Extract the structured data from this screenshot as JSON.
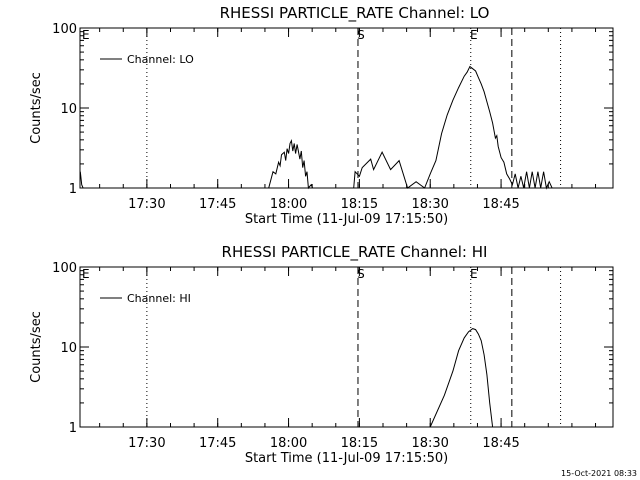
{
  "footer_timestamp": "15-Oct-2021 08:33",
  "chart_data": [
    {
      "type": "line",
      "title": "RHESSI PARTICLE_RATE Channel: LO",
      "xlabel": "Start Time (11-Jul-09 17:15:50)",
      "ylabel": "Counts/sec",
      "xlim": [
        17.264,
        19.145
      ],
      "ylim": [
        1,
        100
      ],
      "yscale": "log",
      "grid": false,
      "legend_position": "top-left",
      "x_ticks": [
        {
          "x": 17.5,
          "label": "17:30"
        },
        {
          "x": 17.75,
          "label": "17:45"
        },
        {
          "x": 18.0,
          "label": "18:00"
        },
        {
          "x": 18.25,
          "label": "18:15"
        },
        {
          "x": 18.5,
          "label": "18:30"
        },
        {
          "x": 18.75,
          "label": "18:45"
        }
      ],
      "y_ticks": [
        {
          "y": 1,
          "label": "1"
        },
        {
          "y": 10,
          "label": "10"
        },
        {
          "y": 100,
          "label": "100"
        }
      ],
      "series": [
        {
          "name": "Channel: LO",
          "x": [
            17.265,
            17.27,
            17.275,
            17.93,
            17.945,
            17.955,
            17.965,
            17.97,
            17.975,
            17.985,
            17.99,
            17.995,
            18.0,
            18.005,
            18.01,
            18.015,
            18.02,
            18.025,
            18.03,
            18.04,
            18.045,
            18.05,
            18.055,
            18.06,
            18.065,
            18.07,
            18.08,
            18.085,
            18.23,
            18.235,
            18.25,
            18.26,
            18.29,
            18.3,
            18.33,
            18.36,
            18.39,
            18.42,
            18.45,
            18.48,
            18.5,
            18.52,
            18.54,
            18.56,
            18.58,
            18.6,
            18.62,
            18.63,
            18.64,
            18.65,
            18.66,
            18.67,
            18.68,
            18.69,
            18.7,
            18.71,
            18.72,
            18.73,
            18.735,
            18.74,
            18.75,
            18.76,
            18.77,
            18.78,
            18.79,
            18.8,
            18.81,
            18.82,
            18.83,
            18.84,
            18.85,
            18.86,
            18.87,
            18.88,
            18.89,
            18.9,
            18.91,
            18.92,
            18.93
          ],
          "y": [
            1.6,
            1.1,
            1,
            1,
            1.6,
            1.5,
            2.1,
            1.9,
            2.6,
            2.8,
            2.2,
            3.1,
            2.7,
            3.6,
            3.9,
            2.9,
            3.6,
            2.7,
            3.5,
            2.3,
            2.9,
            1.8,
            2.2,
            1.4,
            1.6,
            1,
            1.1,
            1,
            1,
            1.6,
            1.4,
            1.8,
            2.3,
            1.7,
            2.8,
            1.7,
            2.2,
            1,
            1.2,
            1,
            1.5,
            2.2,
            4.8,
            8.2,
            12.5,
            18,
            25,
            28,
            33,
            31,
            29,
            24,
            20,
            16,
            12,
            9,
            6.5,
            4.2,
            4.5,
            3.3,
            2.4,
            2.1,
            1.5,
            1.3,
            1.1,
            1.5,
            1,
            1.4,
            1,
            1.6,
            1,
            1.6,
            1,
            1.6,
            1,
            1.6,
            1,
            1.2,
            1
          ]
        }
      ],
      "vlines": [
        {
          "x": 17.5,
          "style": "dotted"
        },
        {
          "x": 18.245,
          "style": "dashed",
          "label": "S"
        },
        {
          "x": 18.643,
          "style": "dotted",
          "label": "E"
        },
        {
          "x": 18.788,
          "style": "dashed"
        },
        {
          "x": 18.96,
          "style": "dotted"
        }
      ],
      "corner_label": "E"
    },
    {
      "type": "line",
      "title": "RHESSI PARTICLE_RATE Channel: HI",
      "xlabel": "Start Time (11-Jul-09 17:15:50)",
      "ylabel": "Counts/sec",
      "xlim": [
        17.264,
        19.145
      ],
      "ylim": [
        1,
        100
      ],
      "yscale": "log",
      "grid": false,
      "legend_position": "top-left",
      "x_ticks": [
        {
          "x": 17.5,
          "label": "17:30"
        },
        {
          "x": 17.75,
          "label": "17:45"
        },
        {
          "x": 18.0,
          "label": "18:00"
        },
        {
          "x": 18.25,
          "label": "18:15"
        },
        {
          "x": 18.5,
          "label": "18:30"
        },
        {
          "x": 18.75,
          "label": "18:45"
        }
      ],
      "y_ticks": [
        {
          "y": 1,
          "label": "1"
        },
        {
          "y": 10,
          "label": "10"
        },
        {
          "y": 100,
          "label": "100"
        }
      ],
      "series": [
        {
          "name": "Channel: HI",
          "x": [
            18.5,
            18.55,
            18.58,
            18.6,
            18.62,
            18.635,
            18.65,
            18.66,
            18.67,
            18.68,
            18.69,
            18.7,
            18.71,
            18.72
          ],
          "y": [
            1,
            2.5,
            5,
            9,
            13,
            15.5,
            17,
            16.5,
            14.5,
            12,
            8,
            4.5,
            2,
            1
          ]
        }
      ],
      "vlines": [
        {
          "x": 17.5,
          "style": "dotted"
        },
        {
          "x": 18.245,
          "style": "dashed",
          "label": "S"
        },
        {
          "x": 18.643,
          "style": "dotted",
          "label": "E"
        },
        {
          "x": 18.788,
          "style": "dashed"
        },
        {
          "x": 18.96,
          "style": "dotted"
        }
      ],
      "corner_label": "E"
    }
  ]
}
